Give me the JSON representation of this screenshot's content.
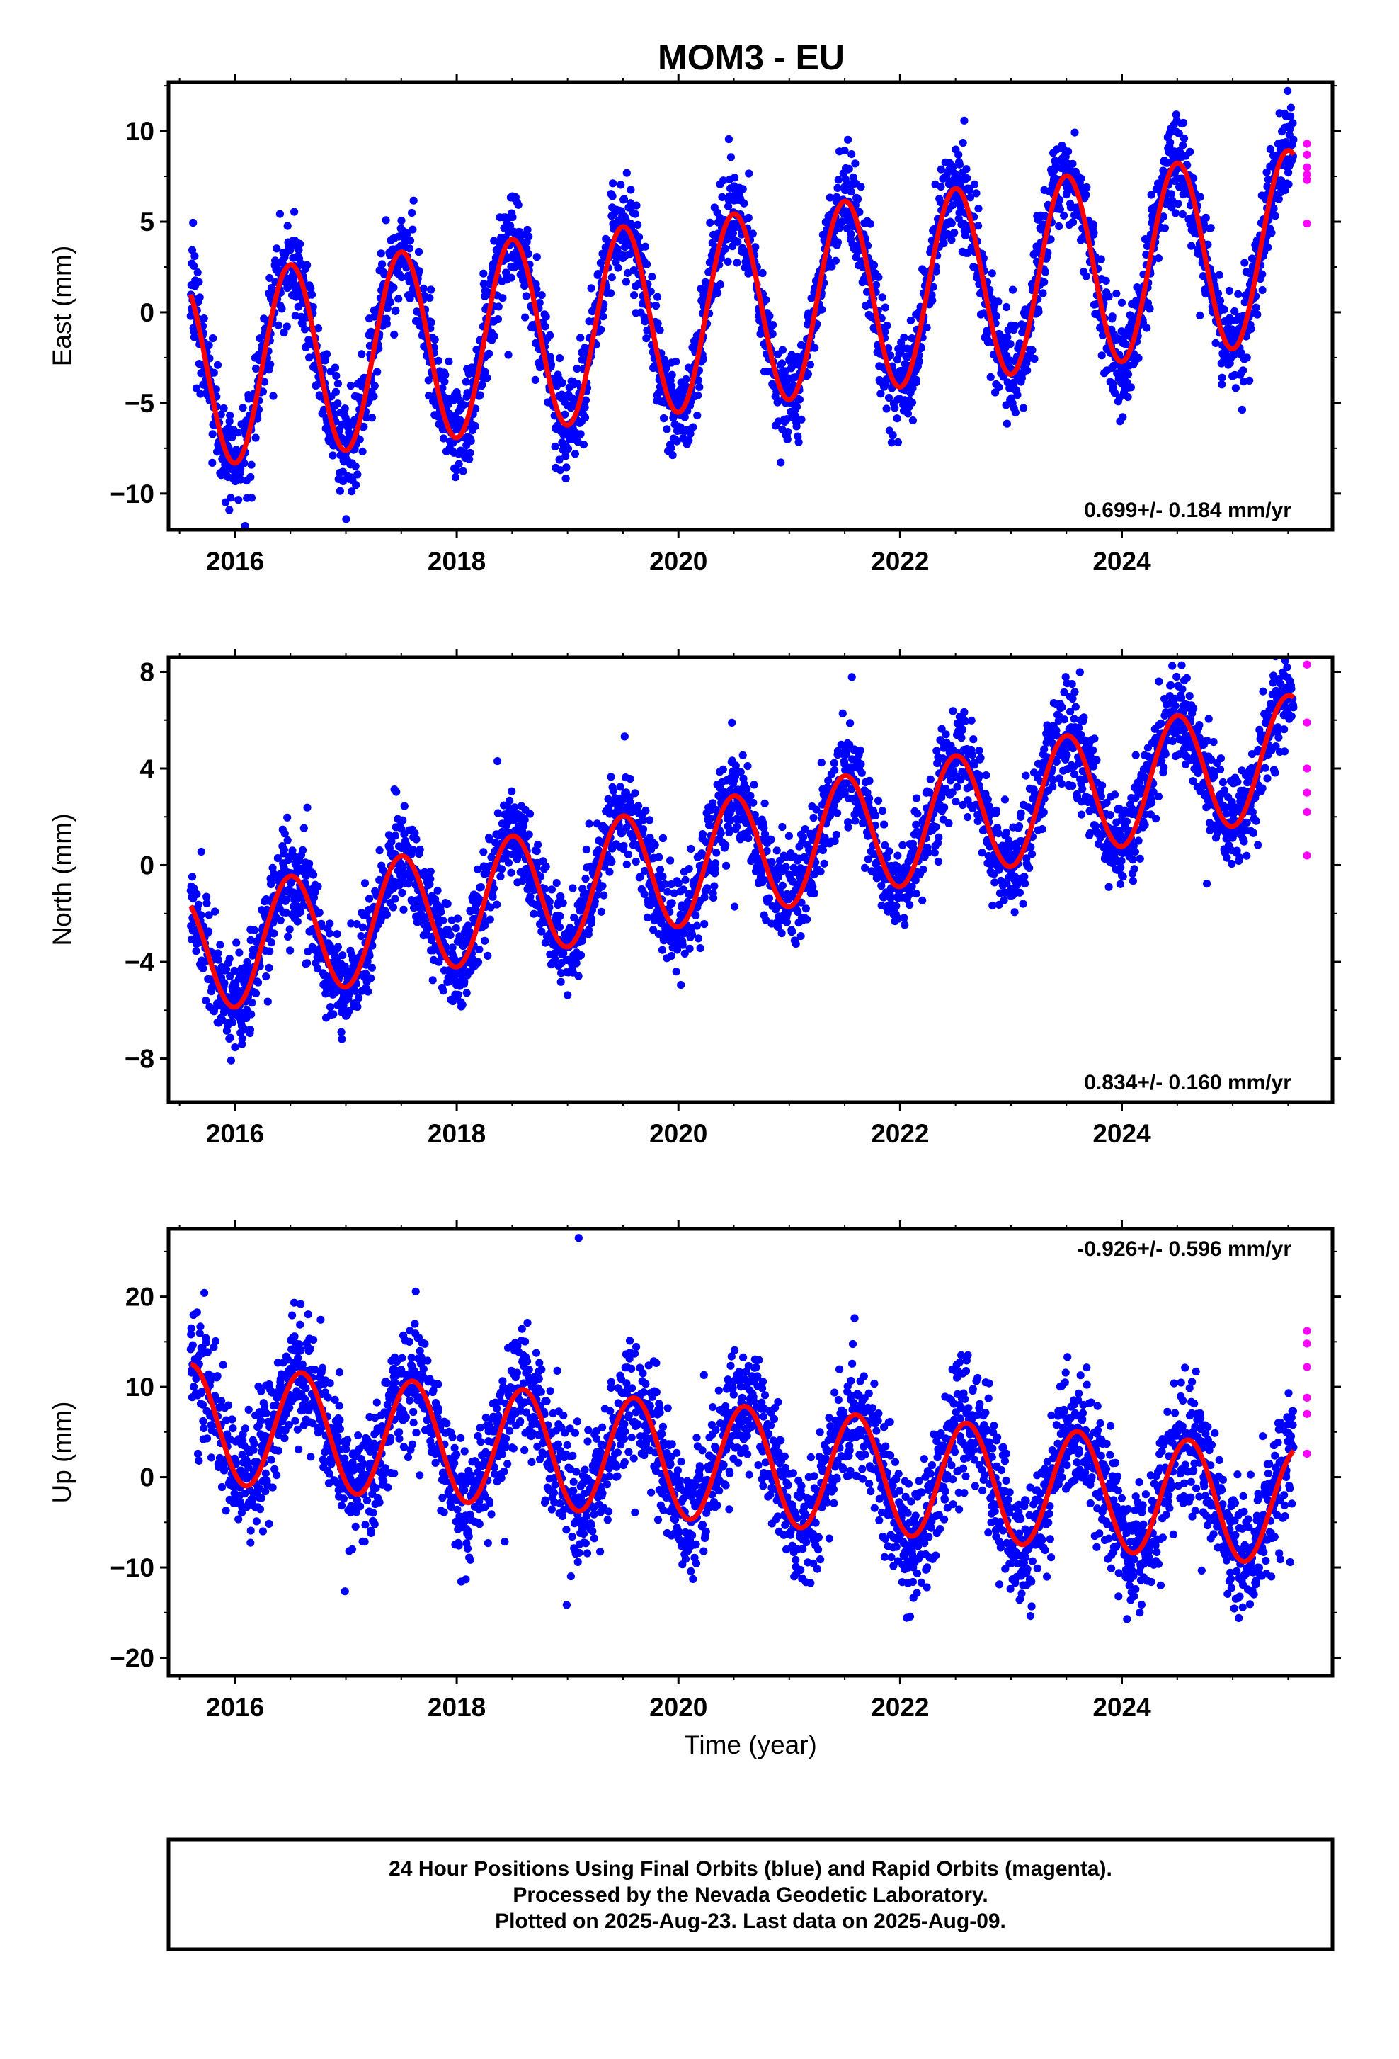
{
  "title": "MOM3 - EU",
  "colors": {
    "final_orbits": "#0000ff",
    "rapid_orbits": "#ff00ff",
    "fit_curve": "#ff0000",
    "frame": "#000000"
  },
  "chart_data": [
    {
      "type": "scatter",
      "component": "east",
      "ylabel": "East (mm)",
      "xlim": [
        2015.4,
        2025.9
      ],
      "ylim": [
        -12,
        12.7
      ],
      "xticks": [
        2016,
        2018,
        2020,
        2022,
        2024
      ],
      "yticks": [
        -10,
        -5,
        0,
        5,
        10
      ],
      "xtick_labels": [
        "2016",
        "2018",
        "2020",
        "2022",
        "2024"
      ],
      "ytick_labels": [
        "−10",
        "−5",
        "0",
        "5",
        "10"
      ],
      "rate_label": "0.699+/- 0.184 mm/yr",
      "rate_position": "bottom-right",
      "x_start": 2015.6,
      "x_end": 2025.55,
      "fit": {
        "start": 2015.6,
        "offset": -3.3,
        "trend_mm_per_yr": 0.7,
        "annual_amplitude": 5.3,
        "annual_peak_phase": 0.5,
        "scatter_spread": 1.3
      },
      "rapid_points": [
        {
          "x": 2025.67,
          "y": 9.3
        },
        {
          "x": 2025.67,
          "y": 8.7
        },
        {
          "x": 2025.67,
          "y": 8.0
        },
        {
          "x": 2025.67,
          "y": 7.6
        },
        {
          "x": 2025.67,
          "y": 7.3
        },
        {
          "x": 2025.67,
          "y": 4.9
        }
      ]
    },
    {
      "type": "scatter",
      "component": "north",
      "ylabel": "North (mm)",
      "xlim": [
        2015.4,
        2025.9
      ],
      "ylim": [
        -9.8,
        8.6
      ],
      "xticks": [
        2016,
        2018,
        2020,
        2022,
        2024
      ],
      "yticks": [
        -8,
        -4,
        0,
        4,
        8
      ],
      "xtick_labels": [
        "2016",
        "2018",
        "2020",
        "2022",
        "2024"
      ],
      "ytick_labels": [
        "−8",
        "−4",
        "0",
        "4",
        "8"
      ],
      "rate_label": "0.834+/- 0.160 mm/yr",
      "rate_position": "bottom-right",
      "x_start": 2015.6,
      "x_end": 2025.55,
      "fit": {
        "start": 2015.6,
        "offset": -3.7,
        "trend_mm_per_yr": 0.83,
        "annual_amplitude": 2.5,
        "annual_peak_phase": 0.5,
        "scatter_spread": 1.0
      },
      "rapid_points": [
        {
          "x": 2025.67,
          "y": 8.3
        },
        {
          "x": 2025.67,
          "y": 5.9
        },
        {
          "x": 2025.67,
          "y": 4.0
        },
        {
          "x": 2025.67,
          "y": 3.0
        },
        {
          "x": 2025.67,
          "y": 2.2
        },
        {
          "x": 2025.67,
          "y": 0.4
        }
      ]
    },
    {
      "type": "scatter",
      "component": "up",
      "ylabel": "Up (mm)",
      "xlabel": "Time (year)",
      "xlim": [
        2015.4,
        2025.9
      ],
      "ylim": [
        -22,
        27.5
      ],
      "xticks": [
        2016,
        2018,
        2020,
        2022,
        2024
      ],
      "yticks": [
        -20,
        -10,
        0,
        10,
        20
      ],
      "xtick_labels": [
        "2016",
        "2018",
        "2020",
        "2022",
        "2024"
      ],
      "ytick_labels": [
        "−20",
        "−10",
        "0",
        "10",
        "20"
      ],
      "rate_label": "-0.926+/- 0.596 mm/yr",
      "rate_position": "top-right",
      "x_start": 2015.6,
      "x_end": 2025.55,
      "fit": {
        "start": 2015.6,
        "offset": 6.0,
        "trend_mm_per_yr": -0.93,
        "annual_amplitude": 6.5,
        "annual_peak_phase": 0.6,
        "scatter_spread": 3.4
      },
      "outliers": [
        {
          "x": 2019.1,
          "y": 26.5
        }
      ],
      "rapid_points": [
        {
          "x": 2025.67,
          "y": 16.2
        },
        {
          "x": 2025.67,
          "y": 14.8
        },
        {
          "x": 2025.67,
          "y": 12.2
        },
        {
          "x": 2025.67,
          "y": 8.8
        },
        {
          "x": 2025.67,
          "y": 7.0
        },
        {
          "x": 2025.67,
          "y": 2.6
        }
      ]
    }
  ],
  "footer": {
    "line1": "24 Hour Positions Using Final Orbits (blue) and Rapid Orbits (magenta).",
    "line2": "Processed by the Nevada Geodetic Laboratory.",
    "line3": "Plotted on 2025-Aug-23. Last data on 2025-Aug-09."
  }
}
